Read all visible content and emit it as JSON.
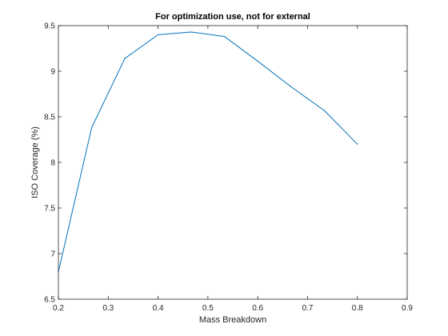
{
  "chart_data": {
    "type": "line",
    "title": "For optimization use, not for external",
    "xlabel": "Mass Breakdown",
    "ylabel": "ISO Coverage (%)",
    "xlim": [
      0.2,
      0.9
    ],
    "ylim": [
      6.5,
      9.5
    ],
    "xticks": [
      0.2,
      0.3,
      0.4,
      0.5,
      0.6,
      0.7,
      0.8,
      0.9
    ],
    "xtick_labels": [
      "0.2",
      "0.3",
      "0.4",
      "0.5",
      "0.6",
      "0.7",
      "0.8",
      "0.9"
    ],
    "yticks": [
      6.5,
      7,
      7.5,
      8,
      8.5,
      9,
      9.5
    ],
    "ytick_labels": [
      "6.5",
      "7",
      "7.5",
      "8",
      "8.5",
      "9",
      "9.5"
    ],
    "grid": false,
    "line_color": "#0072BD",
    "series": [
      {
        "x": [
          0.2,
          0.2667,
          0.3333,
          0.4,
          0.4667,
          0.5333,
          0.6,
          0.6667,
          0.7333,
          0.8
        ],
        "y": [
          6.8,
          8.38,
          9.14,
          9.4,
          9.43,
          9.38,
          9.11,
          8.83,
          8.57,
          8.2
        ]
      }
    ]
  }
}
